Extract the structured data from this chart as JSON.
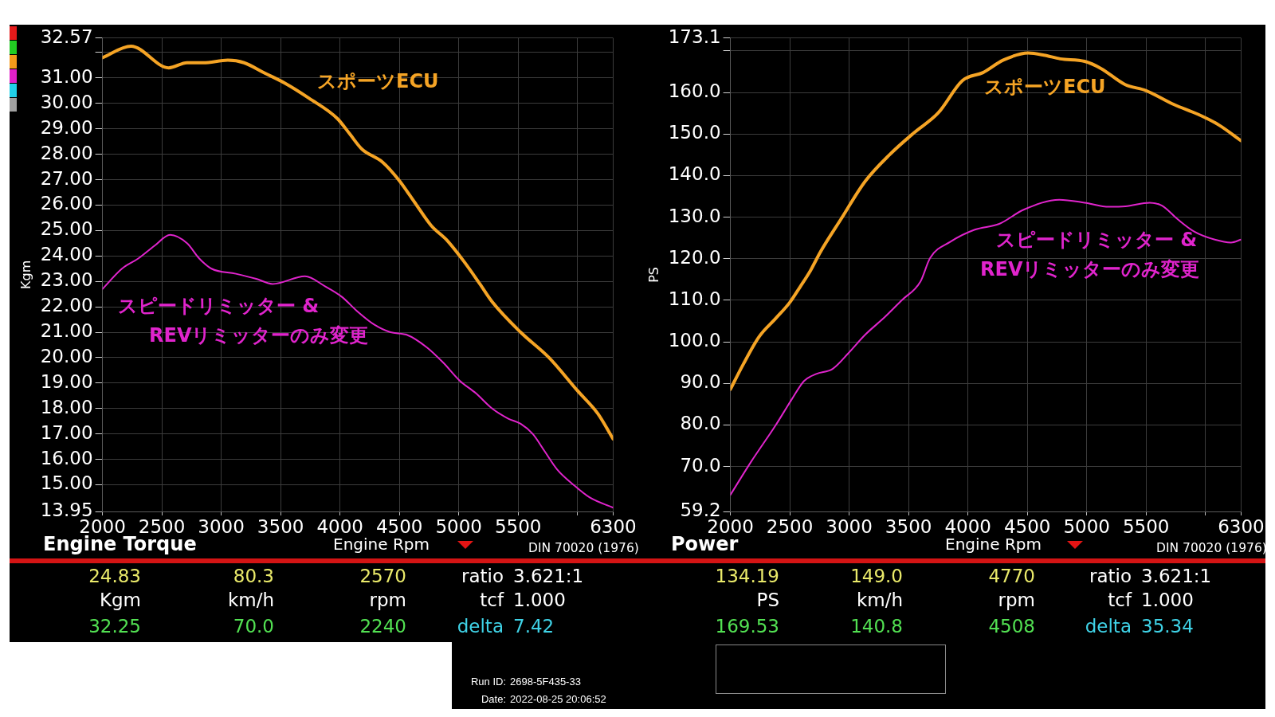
{
  "chart_data": [
    {
      "type": "line",
      "title": "Engine Torque",
      "xlabel": "Engine Rpm",
      "ylabel": "Kgm",
      "xlim": [
        2000,
        6300
      ],
      "xticks": [
        2000,
        2500,
        3000,
        3500,
        4000,
        4500,
        5000,
        5500,
        {
          "value": 6000,
          "label": null
        },
        6300
      ],
      "ylim": [
        13.95,
        32.57
      ],
      "yticks": [
        13.95,
        {
          "value": 15,
          "label": "15.00"
        },
        {
          "value": 16,
          "label": "16.00"
        },
        {
          "value": 17,
          "label": "17.00"
        },
        {
          "value": 18,
          "label": "18.00"
        },
        {
          "value": 19,
          "label": "19.00"
        },
        {
          "value": 20,
          "label": "20.00"
        },
        {
          "value": 21,
          "label": "21.00"
        },
        {
          "value": 22,
          "label": "22.00"
        },
        {
          "value": 23,
          "label": "23.00"
        },
        {
          "value": 24,
          "label": "24.00"
        },
        {
          "value": 25,
          "label": "25.00"
        },
        {
          "value": 26,
          "label": "26.00"
        },
        {
          "value": 27,
          "label": "27.00"
        },
        {
          "value": 28,
          "label": "28.00"
        },
        {
          "value": 29,
          "label": "29.00"
        },
        {
          "value": 30,
          "label": "30.00"
        },
        {
          "value": 31,
          "label": "31.00"
        },
        {
          "value": 32,
          "label": null
        },
        32.57
      ],
      "grid": true,
      "series": [
        {
          "name": "スポーツECU",
          "color": "#f5a425",
          "x": [
            2000,
            2240,
            2558,
            2712,
            2849,
            3055,
            3192,
            3363,
            3534,
            3740,
            3979,
            4082,
            4185,
            4356,
            4493,
            4630,
            4767,
            4904,
            5041,
            5178,
            5281,
            5521,
            5760,
            6000,
            6171,
            6300
          ],
          "values": [
            31.8,
            32.25,
            31.4,
            31.6,
            31.6,
            31.7,
            31.6,
            31.2,
            30.8,
            30.2,
            29.4,
            28.8,
            28.2,
            27.7,
            27.0,
            26.1,
            25.2,
            24.6,
            23.8,
            22.9,
            22.2,
            21.0,
            20.0,
            18.7,
            17.8,
            16.8
          ]
        },
        {
          "name": "スピードリミッター &\nREVリミッターのみ変更",
          "color": "#e024cc",
          "x": [
            2000,
            2164,
            2301,
            2438,
            2570,
            2712,
            2815,
            2918,
            3123,
            3295,
            3432,
            3705,
            3877,
            4014,
            4151,
            4288,
            4425,
            4562,
            4733,
            4870,
            5007,
            5144,
            5281,
            5418,
            5521,
            5623,
            5726,
            5829,
            5966,
            6103,
            6300
          ],
          "values": [
            22.7,
            23.5,
            23.9,
            24.4,
            24.83,
            24.5,
            23.9,
            23.5,
            23.3,
            23.1,
            22.9,
            23.2,
            22.8,
            22.4,
            21.8,
            21.3,
            21.0,
            20.9,
            20.4,
            19.8,
            19.1,
            18.6,
            18.0,
            17.6,
            17.4,
            17.0,
            16.3,
            15.6,
            15.0,
            14.5,
            14.1
          ]
        }
      ],
      "annotations": [
        "24.83",
        "80.3",
        "2570",
        "ratio 3.621:1",
        "Kgm",
        "km/h",
        "rpm",
        "tcf 1.000",
        "32.25",
        "70.0",
        "2240",
        "delta 7.42",
        "DIN 70020 (1976)",
        "Run ID: 2698-5F435-33",
        "Date: 2022-08-25 20:06:52"
      ]
    },
    {
      "type": "line",
      "title": "Power",
      "xlabel": "Engine Rpm",
      "ylabel": "PS",
      "xlim": [
        2000,
        6300
      ],
      "xticks": [
        2000,
        2500,
        3000,
        3500,
        4000,
        4500,
        5000,
        5500,
        {
          "value": 6000,
          "label": null
        },
        6300
      ],
      "ylim": [
        59.2,
        173.1
      ],
      "yticks": [
        59.2,
        {
          "value": 70,
          "label": "70.0"
        },
        {
          "value": 80,
          "label": "80.0"
        },
        {
          "value": 90,
          "label": "90.0"
        },
        {
          "value": 100,
          "label": "100.0"
        },
        {
          "value": 110,
          "label": "110.0"
        },
        {
          "value": 120,
          "label": "120.0"
        },
        {
          "value": 130,
          "label": "130.0"
        },
        {
          "value": 140,
          "label": "140.0"
        },
        {
          "value": 150,
          "label": "150.0"
        },
        {
          "value": 160,
          "label": "160.0"
        },
        {
          "value": 170,
          "label": null
        },
        173.1
      ],
      "grid": true,
      "series": [
        {
          "name": "スポーツECU",
          "color": "#f5a425",
          "x": [
            2000,
            2106,
            2243,
            2380,
            2500,
            2586,
            2671,
            2757,
            2928,
            3134,
            3339,
            3545,
            3750,
            3955,
            4127,
            4298,
            4508,
            4640,
            4777,
            4983,
            5120,
            5325,
            5497,
            5736,
            5942,
            6113,
            6300
          ],
          "values": [
            88.6,
            94.5,
            101.3,
            105.6,
            109.5,
            113.2,
            117.0,
            121.6,
            129.4,
            138.6,
            145.0,
            150.3,
            155.1,
            162.9,
            164.8,
            167.8,
            169.5,
            169.0,
            168.1,
            167.5,
            165.8,
            161.9,
            160.5,
            157.1,
            154.7,
            152.2,
            148.4
          ]
        },
        {
          "name": "スピードリミッター &\nREVリミッターのみ変更",
          "color": "#e024cc",
          "x": [
            2000,
            2175,
            2380,
            2517,
            2620,
            2723,
            2860,
            2997,
            3134,
            3305,
            3442,
            3600,
            3682,
            3853,
            4058,
            4264,
            4469,
            4770,
            4983,
            5188,
            5325,
            5531,
            5634,
            5771,
            5908,
            6079,
            6216,
            6300
          ],
          "values": [
            63.2,
            71.2,
            79.9,
            86.2,
            90.6,
            92.3,
            93.5,
            97.4,
            101.7,
            106.1,
            110.0,
            114.5,
            120.2,
            124.1,
            127.0,
            128.4,
            131.8,
            134.2,
            133.5,
            132.5,
            132.6,
            133.5,
            132.8,
            129.4,
            126.5,
            124.6,
            123.9,
            124.6
          ]
        }
      ],
      "annotations": [
        "134.19",
        "149.0",
        "4770",
        "ratio 3.621:1",
        "PS",
        "km/h",
        "rpm",
        "tcf 1.000",
        "169.53",
        "140.8",
        "4508",
        "delta 35.34",
        "DIN 70020 (1976)"
      ]
    }
  ]
}
